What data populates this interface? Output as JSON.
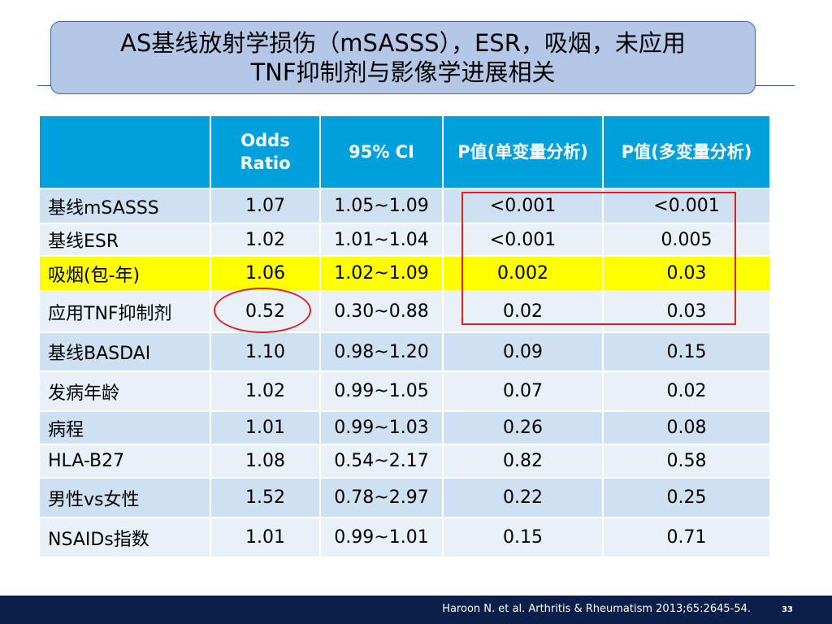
{
  "title": {
    "line1": "AS基线放射学损伤（mSASSS），ESR，吸烟，未应用",
    "line2": "TNF抑制剂与影像学进展相关"
  },
  "table": {
    "headers": [
      "",
      "Odds Ratio",
      "95% CI",
      "P值(单变量分析)",
      "P值(多变量分析)"
    ],
    "rows": [
      {
        "name": "基线mSASSS",
        "or": "1.07",
        "ci": "1.05~1.09",
        "p_uni": "<0.001",
        "p_multi": "<0.001"
      },
      {
        "name": "基线ESR",
        "or": "1.02",
        "ci": "1.01~1.04",
        "p_uni": "<0.001",
        "p_multi": "0.005"
      },
      {
        "name": "吸烟(包-年)",
        "or": "1.06",
        "ci": "1.02~1.09",
        "p_uni": "0.002",
        "p_multi": "0.03"
      },
      {
        "name": "应用TNF抑制剂",
        "or": "0.52",
        "ci": "0.30~0.88",
        "p_uni": "0.02",
        "p_multi": "0.03"
      },
      {
        "name": "基线BASDAI",
        "or": "1.10",
        "ci": "0.98~1.20",
        "p_uni": "0.09",
        "p_multi": "0.15"
      },
      {
        "name": "发病年龄",
        "or": "1.02",
        "ci": "0.99~1.05",
        "p_uni": "0.07",
        "p_multi": "0.02"
      },
      {
        "name": "病程",
        "or": "1.01",
        "ci": "0.99~1.03",
        "p_uni": "0.26",
        "p_multi": "0.08"
      },
      {
        "name": "HLA-B27",
        "or": "1.08",
        "ci": "0.54~2.17",
        "p_uni": "0.82",
        "p_multi": "0.58"
      },
      {
        "name": "男性vs女性",
        "or": "1.52",
        "ci": "0.78~2.97",
        "p_uni": "0.22",
        "p_multi": "0.25"
      },
      {
        "name": "NSAIDs指数",
        "or": "1.01",
        "ci": "0.99~1.01",
        "p_uni": "0.15",
        "p_multi": "0.71"
      }
    ]
  },
  "colors": {
    "header_bg": "#00a0dd",
    "row_odd": "#cfe0f2",
    "row_even": "#e8f0f8",
    "highlight": "#ffff00",
    "annotation": "#e02020",
    "footer_bg": "#0a1f4a",
    "title_bg": "#b4c7e7"
  },
  "footer": {
    "citation": "Haroon N. et al. Arthritis & Rheumatism 2013;65:2645-54.",
    "page_number": "33"
  }
}
